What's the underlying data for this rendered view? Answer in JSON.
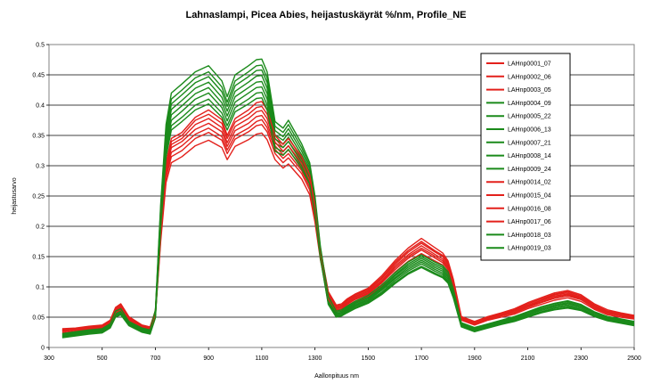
{
  "chart_data": {
    "type": "line",
    "title": "Lahnaslampi, Picea  Abies, heijastuskäyrät %/nm, Profile_NE",
    "xlabel": "Aallonpituus nm",
    "ylabel": "heijastusarvo",
    "xlim": [
      300,
      2500
    ],
    "ylim": [
      0,
      0.5
    ],
    "x_ticks": [
      "300",
      "500",
      "700",
      "900",
      "1100",
      "1300",
      "1500",
      "1700",
      "1900",
      "2100",
      "2300",
      "2500"
    ],
    "y_ticks": [
      "0",
      "0.05",
      "0.1",
      "0.15",
      "0.2",
      "0.25",
      "0.3",
      "0.35",
      "0.4",
      "0.45",
      "0.5"
    ],
    "grid": "horizontal",
    "legend_position": "right",
    "x": [
      350,
      400,
      450,
      500,
      530,
      550,
      570,
      600,
      650,
      680,
      700,
      720,
      740,
      760,
      800,
      850,
      900,
      950,
      970,
      1000,
      1050,
      1080,
      1100,
      1120,
      1150,
      1180,
      1200,
      1250,
      1280,
      1300,
      1320,
      1350,
      1380,
      1400,
      1420,
      1450,
      1500,
      1550,
      1600,
      1650,
      1700,
      1750,
      1780,
      1800,
      1820,
      1850,
      1900,
      1950,
      2000,
      2050,
      2100,
      2150,
      2200,
      2250,
      2300,
      2350,
      2400,
      2450,
      2500
    ],
    "series": [
      {
        "name": "LAHnp0001_07",
        "color": "#e3201b",
        "values": [
          0.03,
          0.031,
          0.034,
          0.036,
          0.044,
          0.065,
          0.07,
          0.05,
          0.036,
          0.033,
          0.06,
          0.2,
          0.3,
          0.34,
          0.35,
          0.375,
          0.385,
          0.37,
          0.345,
          0.372,
          0.385,
          0.396,
          0.398,
          0.385,
          0.345,
          0.33,
          0.34,
          0.31,
          0.28,
          0.23,
          0.16,
          0.09,
          0.068,
          0.07,
          0.078,
          0.086,
          0.096,
          0.115,
          0.14,
          0.16,
          0.175,
          0.16,
          0.152,
          0.14,
          0.11,
          0.05,
          0.042,
          0.05,
          0.056,
          0.062,
          0.072,
          0.08,
          0.088,
          0.092,
          0.085,
          0.07,
          0.06,
          0.056,
          0.052
        ]
      },
      {
        "name": "LAHnp0002_06",
        "color": "#e3201b",
        "values": [
          0.028,
          0.03,
          0.033,
          0.035,
          0.042,
          0.062,
          0.067,
          0.048,
          0.035,
          0.032,
          0.058,
          0.19,
          0.29,
          0.33,
          0.34,
          0.36,
          0.37,
          0.356,
          0.332,
          0.358,
          0.37,
          0.381,
          0.383,
          0.37,
          0.333,
          0.318,
          0.326,
          0.298,
          0.27,
          0.222,
          0.155,
          0.086,
          0.065,
          0.067,
          0.074,
          0.082,
          0.092,
          0.11,
          0.134,
          0.153,
          0.168,
          0.154,
          0.146,
          0.134,
          0.105,
          0.048,
          0.04,
          0.048,
          0.054,
          0.06,
          0.069,
          0.077,
          0.085,
          0.088,
          0.082,
          0.068,
          0.058,
          0.054,
          0.05
        ]
      },
      {
        "name": "LAHnp0003_05",
        "color": "#e3201b",
        "values": [
          0.026,
          0.029,
          0.031,
          0.033,
          0.04,
          0.06,
          0.064,
          0.046,
          0.034,
          0.031,
          0.056,
          0.18,
          0.28,
          0.315,
          0.325,
          0.345,
          0.355,
          0.342,
          0.32,
          0.344,
          0.356,
          0.366,
          0.368,
          0.356,
          0.32,
          0.305,
          0.313,
          0.287,
          0.26,
          0.214,
          0.15,
          0.083,
          0.062,
          0.064,
          0.071,
          0.079,
          0.088,
          0.106,
          0.128,
          0.147,
          0.161,
          0.148,
          0.14,
          0.128,
          0.1,
          0.046,
          0.038,
          0.046,
          0.052,
          0.057,
          0.066,
          0.074,
          0.081,
          0.085,
          0.079,
          0.065,
          0.056,
          0.052,
          0.048
        ]
      },
      {
        "name": "LAHnp0004_09",
        "color": "#1a8a1a",
        "values": [
          0.022,
          0.025,
          0.028,
          0.03,
          0.038,
          0.058,
          0.062,
          0.042,
          0.031,
          0.028,
          0.06,
          0.23,
          0.36,
          0.41,
          0.425,
          0.445,
          0.455,
          0.43,
          0.405,
          0.44,
          0.455,
          0.465,
          0.466,
          0.445,
          0.365,
          0.355,
          0.368,
          0.33,
          0.3,
          0.245,
          0.165,
          0.082,
          0.058,
          0.06,
          0.066,
          0.074,
          0.084,
          0.1,
          0.12,
          0.138,
          0.15,
          0.138,
          0.132,
          0.122,
          0.095,
          0.04,
          0.032,
          0.038,
          0.044,
          0.05,
          0.058,
          0.066,
          0.072,
          0.076,
          0.07,
          0.058,
          0.05,
          0.046,
          0.042
        ]
      },
      {
        "name": "LAHnp0005_22",
        "color": "#1a8a1a",
        "values": [
          0.021,
          0.024,
          0.027,
          0.029,
          0.037,
          0.057,
          0.061,
          0.041,
          0.03,
          0.027,
          0.058,
          0.225,
          0.352,
          0.402,
          0.417,
          0.437,
          0.447,
          0.422,
          0.398,
          0.432,
          0.447,
          0.457,
          0.458,
          0.437,
          0.358,
          0.348,
          0.361,
          0.324,
          0.295,
          0.241,
          0.162,
          0.08,
          0.056,
          0.058,
          0.064,
          0.072,
          0.082,
          0.098,
          0.118,
          0.135,
          0.147,
          0.135,
          0.129,
          0.119,
          0.092,
          0.039,
          0.031,
          0.037,
          0.043,
          0.049,
          0.057,
          0.064,
          0.07,
          0.074,
          0.068,
          0.057,
          0.049,
          0.045,
          0.041
        ]
      },
      {
        "name": "LAHnp0006_13",
        "color": "#1a8a1a",
        "values": [
          0.02,
          0.023,
          0.026,
          0.028,
          0.036,
          0.055,
          0.059,
          0.04,
          0.029,
          0.026,
          0.056,
          0.22,
          0.344,
          0.393,
          0.408,
          0.428,
          0.438,
          0.413,
          0.39,
          0.423,
          0.438,
          0.448,
          0.449,
          0.428,
          0.351,
          0.342,
          0.354,
          0.318,
          0.29,
          0.237,
          0.159,
          0.078,
          0.055,
          0.057,
          0.063,
          0.07,
          0.08,
          0.096,
          0.115,
          0.132,
          0.144,
          0.132,
          0.126,
          0.116,
          0.09,
          0.038,
          0.03,
          0.036,
          0.042,
          0.048,
          0.055,
          0.063,
          0.069,
          0.072,
          0.067,
          0.056,
          0.048,
          0.044,
          0.04
        ]
      },
      {
        "name": "LAHnp0007_21",
        "color": "#1a8a1a",
        "values": [
          0.019,
          0.022,
          0.025,
          0.027,
          0.035,
          0.054,
          0.058,
          0.039,
          0.028,
          0.025,
          0.054,
          0.214,
          0.336,
          0.384,
          0.399,
          0.419,
          0.429,
          0.404,
          0.382,
          0.414,
          0.429,
          0.438,
          0.439,
          0.419,
          0.344,
          0.336,
          0.347,
          0.312,
          0.285,
          0.233,
          0.156,
          0.076,
          0.054,
          0.056,
          0.061,
          0.069,
          0.078,
          0.094,
          0.113,
          0.129,
          0.141,
          0.129,
          0.123,
          0.113,
          0.088,
          0.037,
          0.029,
          0.035,
          0.041,
          0.046,
          0.054,
          0.061,
          0.067,
          0.07,
          0.065,
          0.054,
          0.047,
          0.043,
          0.039
        ]
      },
      {
        "name": "LAHnp0008_14",
        "color": "#1a8a1a",
        "values": [
          0.018,
          0.021,
          0.024,
          0.026,
          0.034,
          0.052,
          0.056,
          0.038,
          0.027,
          0.024,
          0.052,
          0.208,
          0.328,
          0.375,
          0.39,
          0.41,
          0.42,
          0.396,
          0.374,
          0.405,
          0.42,
          0.429,
          0.43,
          0.41,
          0.337,
          0.33,
          0.34,
          0.306,
          0.28,
          0.229,
          0.153,
          0.074,
          0.052,
          0.054,
          0.06,
          0.067,
          0.076,
          0.091,
          0.11,
          0.126,
          0.138,
          0.126,
          0.12,
          0.11,
          0.086,
          0.036,
          0.028,
          0.034,
          0.04,
          0.045,
          0.052,
          0.059,
          0.065,
          0.068,
          0.063,
          0.053,
          0.046,
          0.042,
          0.038
        ]
      },
      {
        "name": "LAHnp0009_24",
        "color": "#1a8a1a",
        "values": [
          0.017,
          0.02,
          0.023,
          0.025,
          0.033,
          0.051,
          0.055,
          0.037,
          0.026,
          0.023,
          0.05,
          0.202,
          0.32,
          0.366,
          0.38,
          0.4,
          0.41,
          0.387,
          0.366,
          0.396,
          0.41,
          0.42,
          0.421,
          0.4,
          0.33,
          0.323,
          0.333,
          0.3,
          0.274,
          0.225,
          0.15,
          0.072,
          0.051,
          0.053,
          0.058,
          0.065,
          0.074,
          0.089,
          0.107,
          0.123,
          0.134,
          0.123,
          0.117,
          0.108,
          0.084,
          0.035,
          0.027,
          0.033,
          0.039,
          0.044,
          0.051,
          0.058,
          0.063,
          0.066,
          0.062,
          0.052,
          0.045,
          0.041,
          0.037
        ]
      },
      {
        "name": "LAHnp0014_02",
        "color": "#e3201b",
        "values": [
          0.024,
          0.027,
          0.03,
          0.032,
          0.039,
          0.058,
          0.062,
          0.045,
          0.033,
          0.03,
          0.054,
          0.175,
          0.272,
          0.305,
          0.315,
          0.333,
          0.342,
          0.33,
          0.31,
          0.332,
          0.343,
          0.352,
          0.354,
          0.343,
          0.31,
          0.296,
          0.303,
          0.278,
          0.252,
          0.207,
          0.146,
          0.08,
          0.06,
          0.062,
          0.069,
          0.076,
          0.085,
          0.102,
          0.124,
          0.142,
          0.155,
          0.143,
          0.136,
          0.124,
          0.097,
          0.045,
          0.037,
          0.045,
          0.05,
          0.055,
          0.064,
          0.071,
          0.078,
          0.082,
          0.076,
          0.063,
          0.054,
          0.05,
          0.047
        ]
      },
      {
        "name": "LAHnp0015_04",
        "color": "#e3201b",
        "values": [
          0.027,
          0.03,
          0.032,
          0.034,
          0.041,
          0.061,
          0.066,
          0.047,
          0.035,
          0.032,
          0.057,
          0.185,
          0.285,
          0.322,
          0.333,
          0.352,
          0.362,
          0.348,
          0.326,
          0.35,
          0.362,
          0.373,
          0.376,
          0.363,
          0.327,
          0.312,
          0.32,
          0.292,
          0.265,
          0.218,
          0.152,
          0.085,
          0.064,
          0.066,
          0.073,
          0.08,
          0.09,
          0.108,
          0.131,
          0.15,
          0.164,
          0.151,
          0.143,
          0.131,
          0.102,
          0.047,
          0.039,
          0.047,
          0.053,
          0.058,
          0.068,
          0.075,
          0.083,
          0.087,
          0.08,
          0.066,
          0.057,
          0.053,
          0.049
        ]
      },
      {
        "name": "LAHnp0016_08",
        "color": "#e3201b",
        "values": [
          0.029,
          0.031,
          0.033,
          0.035,
          0.043,
          0.063,
          0.068,
          0.049,
          0.036,
          0.033,
          0.059,
          0.195,
          0.295,
          0.335,
          0.345,
          0.368,
          0.378,
          0.363,
          0.338,
          0.365,
          0.378,
          0.389,
          0.391,
          0.378,
          0.339,
          0.324,
          0.333,
          0.304,
          0.275,
          0.226,
          0.158,
          0.088,
          0.067,
          0.069,
          0.076,
          0.084,
          0.094,
          0.113,
          0.137,
          0.157,
          0.172,
          0.158,
          0.15,
          0.137,
          0.108,
          0.049,
          0.041,
          0.049,
          0.055,
          0.061,
          0.07,
          0.078,
          0.087,
          0.09,
          0.083,
          0.069,
          0.059,
          0.055,
          0.051
        ]
      },
      {
        "name": "LAHnp0017_06",
        "color": "#e3201b",
        "values": [
          0.031,
          0.032,
          0.035,
          0.037,
          0.045,
          0.066,
          0.072,
          0.051,
          0.037,
          0.034,
          0.061,
          0.205,
          0.305,
          0.345,
          0.355,
          0.38,
          0.392,
          0.376,
          0.35,
          0.378,
          0.392,
          0.404,
          0.406,
          0.392,
          0.35,
          0.335,
          0.345,
          0.315,
          0.285,
          0.234,
          0.163,
          0.092,
          0.07,
          0.072,
          0.08,
          0.088,
          0.098,
          0.118,
          0.143,
          0.164,
          0.18,
          0.165,
          0.156,
          0.143,
          0.113,
          0.051,
          0.043,
          0.051,
          0.057,
          0.064,
          0.074,
          0.082,
          0.09,
          0.094,
          0.087,
          0.072,
          0.062,
          0.057,
          0.053
        ]
      },
      {
        "name": "LAHnp0018_03",
        "color": "#1a8a1a",
        "values": [
          0.016,
          0.019,
          0.022,
          0.024,
          0.032,
          0.05,
          0.054,
          0.036,
          0.025,
          0.022,
          0.049,
          0.198,
          0.314,
          0.359,
          0.373,
          0.392,
          0.402,
          0.38,
          0.359,
          0.389,
          0.402,
          0.411,
          0.412,
          0.392,
          0.324,
          0.317,
          0.327,
          0.295,
          0.27,
          0.221,
          0.148,
          0.071,
          0.05,
          0.052,
          0.057,
          0.064,
          0.073,
          0.087,
          0.105,
          0.121,
          0.132,
          0.121,
          0.115,
          0.106,
          0.082,
          0.034,
          0.026,
          0.032,
          0.038,
          0.043,
          0.05,
          0.057,
          0.062,
          0.065,
          0.061,
          0.051,
          0.044,
          0.04,
          0.036
        ]
      },
      {
        "name": "LAHnp0019_03",
        "color": "#1a8a1a",
        "values": [
          0.023,
          0.026,
          0.029,
          0.031,
          0.039,
          0.06,
          0.064,
          0.043,
          0.032,
          0.029,
          0.062,
          0.236,
          0.368,
          0.42,
          0.435,
          0.455,
          0.465,
          0.44,
          0.414,
          0.45,
          0.465,
          0.475,
          0.476,
          0.455,
          0.373,
          0.362,
          0.375,
          0.336,
          0.305,
          0.25,
          0.168,
          0.084,
          0.06,
          0.062,
          0.068,
          0.076,
          0.086,
          0.103,
          0.123,
          0.141,
          0.153,
          0.141,
          0.135,
          0.125,
          0.097,
          0.041,
          0.033,
          0.039,
          0.045,
          0.051,
          0.059,
          0.067,
          0.073,
          0.077,
          0.071,
          0.059,
          0.051,
          0.047,
          0.043
        ]
      }
    ]
  }
}
